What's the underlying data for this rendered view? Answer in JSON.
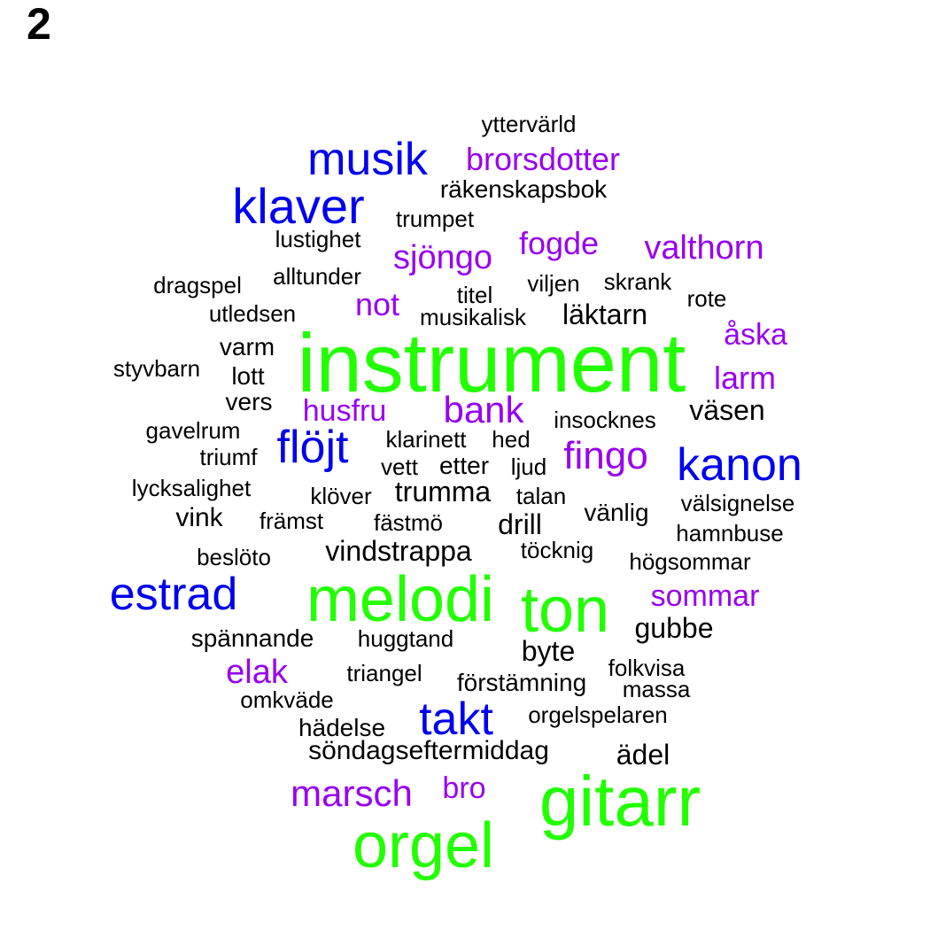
{
  "panel_label": "2",
  "colors": {
    "large": "#22ff00",
    "medium": "#0000ee",
    "small": "#9900ee",
    "tiny": "#000000"
  },
  "words": [
    {
      "text": "instrument",
      "color": "large"
    },
    {
      "text": "melodi",
      "color": "large"
    },
    {
      "text": "ton",
      "color": "large"
    },
    {
      "text": "gitarr",
      "color": "large"
    },
    {
      "text": "orgel",
      "color": "large"
    },
    {
      "text": "musik",
      "color": "medium"
    },
    {
      "text": "klaver",
      "color": "medium"
    },
    {
      "text": "kanon",
      "color": "medium"
    },
    {
      "text": "flöjt",
      "color": "medium"
    },
    {
      "text": "estrad",
      "color": "medium"
    },
    {
      "text": "takt",
      "color": "medium"
    },
    {
      "text": "brorsdotter",
      "color": "small"
    },
    {
      "text": "sjöngo",
      "color": "small"
    },
    {
      "text": "fogde",
      "color": "small"
    },
    {
      "text": "valthorn",
      "color": "small"
    },
    {
      "text": "not",
      "color": "small"
    },
    {
      "text": "åska",
      "color": "small"
    },
    {
      "text": "larm",
      "color": "small"
    },
    {
      "text": "husfru",
      "color": "small"
    },
    {
      "text": "bank",
      "color": "small"
    },
    {
      "text": "fingo",
      "color": "small"
    },
    {
      "text": "sommar",
      "color": "small"
    },
    {
      "text": "elak",
      "color": "small"
    },
    {
      "text": "marsch",
      "color": "small"
    },
    {
      "text": "bro",
      "color": "small"
    },
    {
      "text": "yttervärld",
      "color": "tiny"
    },
    {
      "text": "räkenskapsbok",
      "color": "tiny"
    },
    {
      "text": "trumpet",
      "color": "tiny"
    },
    {
      "text": "lustighet",
      "color": "tiny"
    },
    {
      "text": "alltunder",
      "color": "tiny"
    },
    {
      "text": "dragspel",
      "color": "tiny"
    },
    {
      "text": "titel",
      "color": "tiny"
    },
    {
      "text": "viljen",
      "color": "tiny"
    },
    {
      "text": "skrank",
      "color": "tiny"
    },
    {
      "text": "rote",
      "color": "tiny"
    },
    {
      "text": "utledsen",
      "color": "tiny"
    },
    {
      "text": "musikalisk",
      "color": "tiny"
    },
    {
      "text": "läktarn",
      "color": "tiny"
    },
    {
      "text": "varm",
      "color": "tiny"
    },
    {
      "text": "styvbarn",
      "color": "tiny"
    },
    {
      "text": "lott",
      "color": "tiny"
    },
    {
      "text": "vers",
      "color": "tiny"
    },
    {
      "text": "väsen",
      "color": "tiny"
    },
    {
      "text": "insocknes",
      "color": "tiny"
    },
    {
      "text": "gavelrum",
      "color": "tiny"
    },
    {
      "text": "klarinett",
      "color": "tiny"
    },
    {
      "text": "hed",
      "color": "tiny"
    },
    {
      "text": "triumf",
      "color": "tiny"
    },
    {
      "text": "vett",
      "color": "tiny"
    },
    {
      "text": "etter",
      "color": "tiny"
    },
    {
      "text": "ljud",
      "color": "tiny"
    },
    {
      "text": "lycksalighet",
      "color": "tiny"
    },
    {
      "text": "klöver",
      "color": "tiny"
    },
    {
      "text": "trumma",
      "color": "tiny"
    },
    {
      "text": "talan",
      "color": "tiny"
    },
    {
      "text": "välsignelse",
      "color": "tiny"
    },
    {
      "text": "vink",
      "color": "tiny"
    },
    {
      "text": "främst",
      "color": "tiny"
    },
    {
      "text": "fästmö",
      "color": "tiny"
    },
    {
      "text": "drill",
      "color": "tiny"
    },
    {
      "text": "vänlig",
      "color": "tiny"
    },
    {
      "text": "hamnbuse",
      "color": "tiny"
    },
    {
      "text": "beslöto",
      "color": "tiny"
    },
    {
      "text": "vindstrappa",
      "color": "tiny"
    },
    {
      "text": "töcknig",
      "color": "tiny"
    },
    {
      "text": "högsommar",
      "color": "tiny"
    },
    {
      "text": "gubbe",
      "color": "tiny"
    },
    {
      "text": "spännande",
      "color": "tiny"
    },
    {
      "text": "huggtand",
      "color": "tiny"
    },
    {
      "text": "byte",
      "color": "tiny"
    },
    {
      "text": "folkvisa",
      "color": "tiny"
    },
    {
      "text": "triangel",
      "color": "tiny"
    },
    {
      "text": "förstämning",
      "color": "tiny"
    },
    {
      "text": "massa",
      "color": "tiny"
    },
    {
      "text": "omkväde",
      "color": "tiny"
    },
    {
      "text": "orgelspelaren",
      "color": "tiny"
    },
    {
      "text": "hädelse",
      "color": "tiny"
    },
    {
      "text": "söndagseftermiddag",
      "color": "tiny"
    },
    {
      "text": "ädel",
      "color": "tiny"
    }
  ]
}
